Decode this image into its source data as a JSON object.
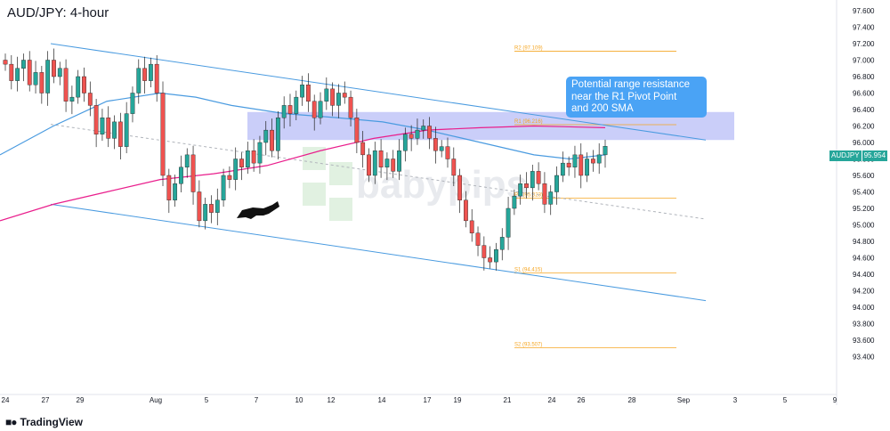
{
  "header": {
    "title": "AUD/JPY: 4-hour"
  },
  "footer": {
    "brand": "TradingView",
    "brand_icon": "tradingview-logo-icon"
  },
  "callout": {
    "lines": [
      "Potential range resistance",
      "near the R1 Pivot Point",
      "and 200 SMA"
    ]
  },
  "price_tag": {
    "symbol": "AUDJPY",
    "value": "95.954"
  },
  "colors": {
    "bull": "#26a69a",
    "bear": "#ef5350",
    "channel": "#4a9be0",
    "sma_fast": "#4a9be0",
    "sma_slow": "#e91e8c",
    "pivot": "#f5a623",
    "resistance_zone": "#b8bdf7",
    "callout": "#4aa3f5"
  },
  "watermark": "babypips",
  "chart_data": {
    "type": "line",
    "title": "AUD/JPY: 4-hour",
    "y_ticks": [
      "97.600",
      "97.400",
      "97.200",
      "97.000",
      "96.800",
      "96.600",
      "96.400",
      "96.200",
      "96.000",
      "95.800",
      "95.600",
      "95.400",
      "95.200",
      "95.000",
      "94.800",
      "94.600",
      "94.400",
      "94.200",
      "94.000",
      "93.800",
      "93.600",
      "93.400"
    ],
    "ylim": [
      93.3,
      97.7
    ],
    "x_ticks": [
      "24",
      "27",
      "29",
      "Aug",
      "5",
      "7",
      "10",
      "12",
      "14",
      "17",
      "19",
      "21",
      "24",
      "26",
      "28",
      "Sep",
      "3",
      "5",
      "9"
    ],
    "pivots": [
      {
        "label": "R2 (97.109)",
        "value": 97.109
      },
      {
        "label": "R1 (96.216)",
        "value": 96.216
      },
      {
        "label": "PP (95.323)",
        "value": 95.323
      },
      {
        "label": "S1 (94.415)",
        "value": 94.415
      },
      {
        "label": "S2 (93.507)",
        "value": 93.507
      }
    ],
    "resistance_zone": [
      96.03,
      96.37
    ],
    "last_price": 95.954,
    "closes": [
      96.95,
      96.75,
      96.9,
      97.0,
      96.7,
      96.85,
      96.6,
      97.0,
      96.8,
      96.9,
      96.5,
      96.55,
      96.8,
      96.6,
      96.45,
      96.1,
      96.3,
      96.05,
      96.25,
      95.95,
      96.35,
      96.6,
      96.9,
      96.75,
      96.95,
      96.6,
      95.6,
      95.3,
      95.5,
      95.7,
      95.85,
      95.4,
      95.05,
      95.25,
      95.15,
      95.3,
      95.6,
      95.55,
      95.8,
      95.7,
      95.9,
      95.75,
      96.0,
      96.15,
      95.9,
      96.3,
      96.45,
      96.35,
      96.55,
      96.7,
      96.5,
      96.3,
      96.5,
      96.65,
      96.45,
      96.6,
      96.55,
      96.3,
      96.0,
      95.85,
      95.6,
      95.9,
      95.7,
      95.8,
      95.65,
      95.9,
      96.1,
      96.05,
      96.15,
      96.2,
      96.05,
      95.9,
      95.95,
      95.8,
      95.6,
      95.3,
      95.05,
      94.9,
      94.75,
      94.6,
      94.55,
      94.7,
      94.85,
      95.2,
      95.35,
      95.5,
      95.45,
      95.65,
      95.5,
      95.25,
      95.4,
      95.6,
      95.75,
      95.7,
      95.85,
      95.6,
      95.8,
      95.75,
      95.85,
      95.954
    ],
    "channel_upper": {
      "from": [
        57,
        97.2
      ],
      "to": [
        793,
        96.03
      ]
    },
    "channel_lower": {
      "from": [
        57,
        95.25
      ],
      "to": [
        793,
        94.08
      ]
    },
    "channel_mid": {
      "from": [
        57,
        96.22
      ],
      "to": [
        793,
        95.07
      ]
    },
    "sma_fast_points": [
      [
        0,
        95.85
      ],
      [
        60,
        96.2
      ],
      [
        120,
        96.5
      ],
      [
        180,
        96.6
      ],
      [
        220,
        96.55
      ],
      [
        260,
        96.45
      ],
      [
        320,
        96.35
      ],
      [
        380,
        96.3
      ],
      [
        430,
        96.25
      ],
      [
        480,
        96.15
      ],
      [
        520,
        96.05
      ],
      [
        560,
        95.95
      ],
      [
        600,
        95.85
      ],
      [
        640,
        95.8
      ],
      [
        680,
        95.85
      ]
    ],
    "sma_slow_points": [
      [
        0,
        95.05
      ],
      [
        60,
        95.25
      ],
      [
        120,
        95.4
      ],
      [
        180,
        95.55
      ],
      [
        240,
        95.62
      ],
      [
        300,
        95.72
      ],
      [
        360,
        95.9
      ],
      [
        420,
        96.05
      ],
      [
        480,
        96.15
      ],
      [
        540,
        96.18
      ],
      [
        600,
        96.2
      ],
      [
        680,
        96.18
      ]
    ]
  }
}
